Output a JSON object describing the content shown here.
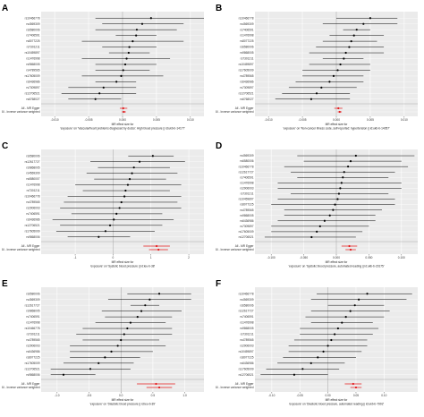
{
  "colors": {
    "point": "#000000",
    "summary": "#e41a1c",
    "line": "#000000",
    "grid": "#ffffff",
    "panel_bg": "#ebebeb",
    "zero_line": "#9a9a9a"
  },
  "chart_data": [
    {
      "type": "forest",
      "panel": "A",
      "snps": [
        "rs10466778",
        "rs4569309",
        "rs6580006",
        "rs7406591",
        "rs8077225",
        "rs7301211",
        "rs10459897",
        "rs1476998",
        "rs9868005",
        "rs4789565",
        "rs17605009",
        "rs6436986",
        "rs7309897",
        "rs12706521",
        "rs6768027"
      ],
      "beta": [
        0.0042,
        0.0029,
        0.0021,
        0.002,
        0.0015,
        0.001,
        0.0009,
        0.0006,
        0.0004,
        0.0001,
        -0.0002,
        -0.0009,
        -0.0028,
        -0.0034,
        -0.004
      ],
      "lower": [
        -0.004,
        -0.003,
        -0.004,
        -0.001,
        -0.006,
        -0.003,
        -0.002,
        -0.006,
        -0.004,
        -0.004,
        -0.006,
        -0.004,
        -0.008,
        -0.009,
        -0.008
      ],
      "upper": [
        0.012,
        0.009,
        0.008,
        0.005,
        0.009,
        0.005,
        0.004,
        0.007,
        0.005,
        0.004,
        0.006,
        0.002,
        0.002,
        0.002,
        -0.0002
      ],
      "summary": [
        {
          "label": "All - MR Egger",
          "beta": 0.0001,
          "lower": -0.0004,
          "upper": 0.0007
        },
        {
          "label": "All - Inverse variance weighted",
          "beta": 0.0002,
          "lower": -0.0001,
          "upper": 0.0005
        }
      ],
      "xticks": [
        "-0.010",
        "-0.005",
        "0.000",
        "0.005",
        "0.010"
      ],
      "xlim": [
        -0.012,
        0.012
      ],
      "xlabel_line1": "MR effect size for",
      "xlabel_line2": "'exposure' on 'Vascular/heart problems diagnosed by doctor: High blood pressure || id:ukb-b-14177'"
    },
    {
      "type": "forest",
      "panel": "B",
      "snps": [
        "rs10466778",
        "rs4569309",
        "rs7406591",
        "rs1476998",
        "rs8077225",
        "rs6580006",
        "rs9868005",
        "rs7301211",
        "rs10459897",
        "rs17605009",
        "rs4789565",
        "rs6436986",
        "rs7309897",
        "rs12706521",
        "rs6768027"
      ],
      "beta": [
        0.005,
        0.004,
        0.003,
        0.0026,
        0.0022,
        0.0019,
        0.0014,
        0.0011,
        0.0006,
        0.0002,
        -0.0004,
        -0.001,
        -0.0022,
        -0.0029,
        -0.0037
      ],
      "lower": [
        0.0,
        -0.002,
        0.001,
        -0.001,
        -0.002,
        -0.003,
        -0.004,
        -0.002,
        -0.004,
        -0.005,
        -0.005,
        -0.006,
        -0.007,
        -0.008,
        -0.009
      ],
      "upper": [
        0.009,
        0.009,
        0.005,
        0.007,
        0.006,
        0.007,
        0.007,
        0.004,
        0.005,
        0.005,
        0.004,
        0.004,
        0.003,
        0.002,
        0.002
      ],
      "summary": [
        {
          "label": "All - MR Egger",
          "beta": 0.0003,
          "lower": -0.0003,
          "upper": 0.0009
        },
        {
          "label": "All - Inverse variance weighted",
          "beta": 0.0005,
          "lower": 0.0002,
          "upper": 0.0008
        }
      ],
      "xticks": [
        "-0.010",
        "-0.005",
        "0.000",
        "0.005",
        "0.010"
      ],
      "xlim": [
        -0.012,
        0.012
      ],
      "xlabel_line1": "MR effect size for",
      "xlabel_line2": "'exposure' on 'Non-cancer illness code, self-reported: hypertension || id:ukb-b-14057'"
    },
    {
      "type": "forest",
      "panel": "C",
      "snps": [
        "rs6580006",
        "rs12617727",
        "rs9868005",
        "rs4569309",
        "rs6580007",
        "rs1476998",
        "rs7301211",
        "rs10466778",
        "rs4789565",
        "rs2906003",
        "rs7406591",
        "rs6436986",
        "rs12706521",
        "rs17605009",
        "rs9868006"
      ],
      "beta": [
        1.05,
        0.7,
        0.55,
        0.5,
        0.44,
        0.39,
        0.33,
        0.3,
        0.22,
        0.17,
        0.09,
        0.02,
        -0.08,
        -0.2,
        -0.38
      ],
      "lower": [
        0.4,
        -0.6,
        -0.4,
        -0.7,
        -0.5,
        -1.0,
        -0.8,
        -1.2,
        -1.3,
        -1.4,
        -1.1,
        -1.6,
        -1.4,
        -1.5,
        -1.2
      ],
      "upper": [
        1.6,
        1.9,
        1.5,
        1.7,
        1.4,
        1.8,
        1.5,
        1.8,
        1.7,
        1.8,
        1.3,
        1.6,
        1.3,
        1.1,
        0.45
      ],
      "summary": [
        {
          "label": "All - MR Egger",
          "beta": 1.15,
          "lower": 0.8,
          "upper": 1.5
        },
        {
          "label": "All - Inverse variance weighted",
          "beta": 1.2,
          "lower": 0.95,
          "upper": 1.45
        }
      ],
      "xticks": [
        "-1",
        "0",
        "1",
        "2"
      ],
      "xlim": [
        -1.9,
        2.4
      ],
      "xlabel_line1": "MR effect size for",
      "xlabel_line2": "'exposure' on 'Systolic blood pressure || id:ieu-b-38'"
    },
    {
      "type": "forest",
      "panel": "D",
      "snps": [
        "rs4569309",
        "rs6580006",
        "rs10466778",
        "rs12617727",
        "rs7406591",
        "rs1476998",
        "rs2906003",
        "rs7301211",
        "rs10459897",
        "rs8077225",
        "rs4789565",
        "rs9868005",
        "rs6436986",
        "rs7309897",
        "rs17605009",
        "rs12706521"
      ],
      "beta": [
        0.03,
        0.022,
        0.018,
        0.012,
        0.01,
        0.008,
        0.006,
        0.004,
        0.002,
        -0.002,
        -0.005,
        -0.01,
        -0.018,
        -0.025,
        -0.03,
        -0.038
      ],
      "lower": [
        -0.06,
        -0.05,
        -0.08,
        -0.07,
        -0.06,
        -0.09,
        -0.09,
        -0.07,
        -0.09,
        -0.1,
        -0.08,
        -0.08,
        -0.09,
        -0.1,
        -0.1,
        -0.11
      ],
      "upper": [
        0.12,
        0.1,
        0.11,
        0.09,
        0.08,
        0.1,
        0.1,
        0.08,
        0.09,
        0.09,
        0.07,
        0.06,
        0.06,
        0.05,
        0.04,
        0.03
      ],
      "summary": [
        {
          "label": "All - MR Egger",
          "beta": 0.02,
          "lower": 0.008,
          "upper": 0.032
        },
        {
          "label": "All - Inverse variance weighted",
          "beta": 0.022,
          "lower": 0.014,
          "upper": 0.03
        }
      ],
      "xticks": [
        "-0.100",
        "-0.050",
        "0.000",
        "0.050",
        "0.100"
      ],
      "xlim": [
        -0.125,
        0.125
      ],
      "xlabel_line1": "MR effect size for",
      "xlabel_line2": "'exposure' on 'Systolic blood pressure, automated reading || id:ukb-b-20175'"
    },
    {
      "type": "forest",
      "panel": "E",
      "snps": [
        "rs6580006",
        "rs4569309",
        "rs12617727",
        "rs9868005",
        "rs7406591",
        "rs1476998",
        "rs10466778",
        "rs7301211",
        "rs4789565",
        "rs2906003",
        "rs6436986",
        "rs8077225",
        "rs17605009",
        "rs12706521",
        "rs9868006"
      ],
      "beta": [
        0.6,
        0.45,
        0.38,
        0.32,
        0.26,
        0.15,
        0.1,
        0.05,
        0.0,
        -0.05,
        -0.15,
        -0.25,
        -0.35,
        -0.48,
        -0.9
      ],
      "lower": [
        0.1,
        -0.2,
        0.15,
        -0.3,
        -0.25,
        -0.4,
        -0.6,
        -0.7,
        -0.6,
        -0.8,
        -0.8,
        -0.8,
        -0.9,
        -1.1,
        -1.1
      ],
      "upper": [
        1.1,
        1.1,
        0.6,
        0.95,
        0.8,
        0.7,
        0.8,
        0.8,
        0.6,
        0.7,
        0.5,
        0.3,
        0.2,
        0.15,
        -0.4
      ],
      "summary": [
        {
          "label": "All - MR Egger",
          "beta": 0.55,
          "lower": 0.25,
          "upper": 0.85
        },
        {
          "label": "All - Inverse variance weighted",
          "beta": 0.6,
          "lower": 0.4,
          "upper": 0.8
        }
      ],
      "xticks": [
        "-1.0",
        "-0.5",
        "0.0",
        "0.5",
        "1.0"
      ],
      "xlim": [
        -1.25,
        1.3
      ],
      "xlabel_line1": "MR effect size for",
      "xlabel_line2": "'exposure' on 'Diastolic blood pressure || id:ieu-b-39'"
    },
    {
      "type": "forest",
      "panel": "F",
      "snps": [
        "rs10466778",
        "rs4569309",
        "rs6580006",
        "rs12617727",
        "rs7406591",
        "rs1476998",
        "rs9868005",
        "rs7301211",
        "rs4789565",
        "rs2906003",
        "rs10459897",
        "rs8077225",
        "rs6436986",
        "rs17605009",
        "rs12706521"
      ],
      "beta": [
        0.07,
        0.055,
        0.048,
        0.04,
        0.032,
        0.025,
        0.018,
        0.012,
        0.006,
        0.0,
        -0.008,
        -0.018,
        -0.03,
        -0.045,
        -0.06
      ],
      "lower": [
        -0.02,
        -0.03,
        0.0,
        -0.03,
        -0.04,
        -0.03,
        -0.05,
        -0.05,
        -0.06,
        -0.07,
        -0.07,
        -0.08,
        -0.09,
        -0.11,
        -0.12
      ],
      "upper": [
        0.15,
        0.14,
        0.1,
        0.11,
        0.1,
        0.08,
        0.09,
        0.08,
        0.07,
        0.07,
        0.06,
        0.05,
        0.03,
        0.02,
        0.0
      ],
      "summary": [
        {
          "label": "All - MR Egger",
          "beta": 0.045,
          "lower": 0.03,
          "upper": 0.06
        },
        {
          "label": "All - Inverse variance weighted",
          "beta": 0.05,
          "lower": 0.04,
          "upper": 0.06
        }
      ],
      "xticks": [
        "-0.10",
        "-0.05",
        "0.00",
        "0.05",
        "0.10"
      ],
      "xlim": [
        -0.13,
        0.16
      ],
      "xlabel_line1": "MR effect size for",
      "xlabel_line2": "'exposure' on 'Diastolic blood pressure, automated reading || id:ukb-b-7992'"
    }
  ]
}
